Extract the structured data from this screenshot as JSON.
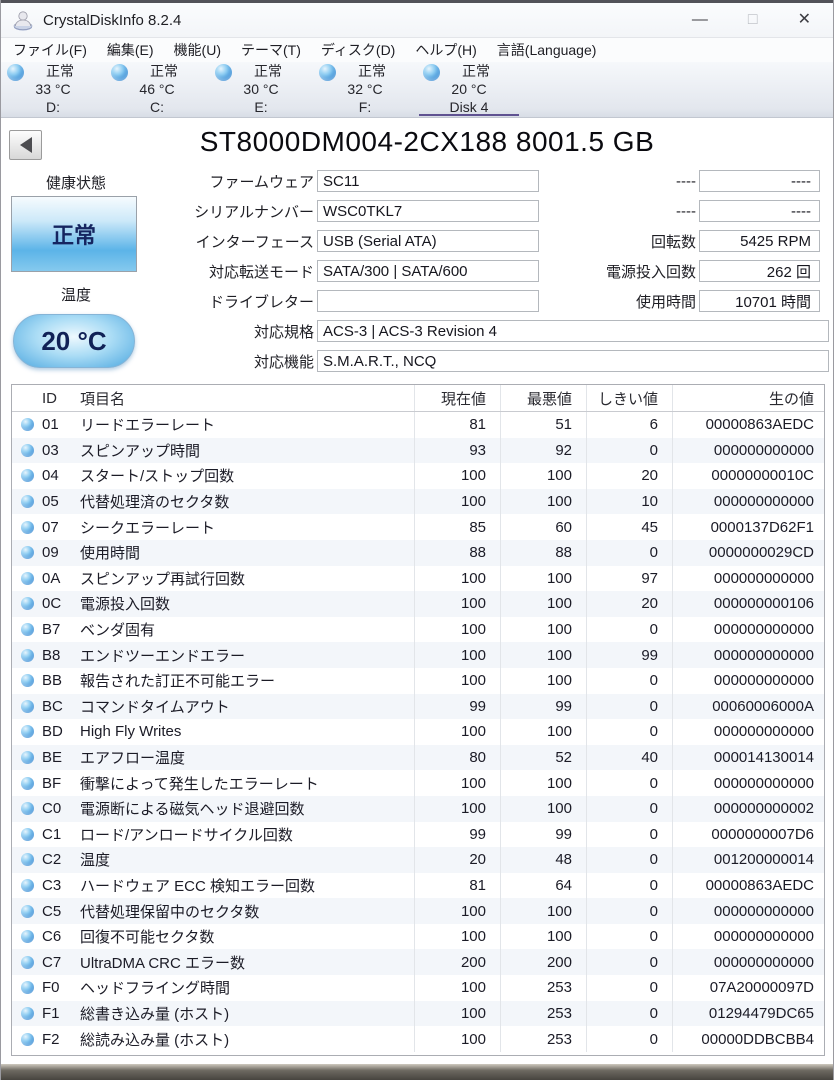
{
  "window": {
    "title": "CrystalDiskInfo 8.2.4",
    "minimize_glyph": "—",
    "maximize_glyph": "□",
    "close_glyph": "✕"
  },
  "menu": [
    "ファイル(F)",
    "編集(E)",
    "機能(U)",
    "テーマ(T)",
    "ディスク(D)",
    "ヘルプ(H)",
    "言語(Language)"
  ],
  "tabs": [
    {
      "status": "正常",
      "temp": "33 °C",
      "name": "D:",
      "selected": false
    },
    {
      "status": "正常",
      "temp": "46 °C",
      "name": "C:",
      "selected": false
    },
    {
      "status": "正常",
      "temp": "30 °C",
      "name": "E:",
      "selected": false
    },
    {
      "status": "正常",
      "temp": "32 °C",
      "name": "F:",
      "selected": false
    },
    {
      "status": "正常",
      "temp": "20 °C",
      "name": "Disk 4",
      "selected": true
    }
  ],
  "drive": {
    "title": "ST8000DM004-2CX188 8001.5 GB",
    "health_label": "健康状態",
    "health_status": "正常",
    "temp_label": "温度",
    "temp_value": "20 °C",
    "fields_left": [
      {
        "label": "ファームウェア",
        "value": "SC11"
      },
      {
        "label": "シリアルナンバー",
        "value": "WSC0TKL7"
      },
      {
        "label": "インターフェース",
        "value": "USB (Serial ATA)"
      },
      {
        "label": "対応転送モード",
        "value": "SATA/300 | SATA/600"
      },
      {
        "label": "ドライブレター",
        "value": ""
      }
    ],
    "fields_right": [
      {
        "label": "----",
        "value": "----"
      },
      {
        "label": "----",
        "value": "----"
      },
      {
        "label": "回転数",
        "value": "5425 RPM"
      },
      {
        "label": "電源投入回数",
        "value": "262 回"
      },
      {
        "label": "使用時間",
        "value": "10701 時間"
      }
    ],
    "fields_wide": [
      {
        "label": "対応規格",
        "value": "ACS-3 | ACS-3 Revision 4"
      },
      {
        "label": "対応機能",
        "value": "S.M.A.R.T., NCQ"
      }
    ]
  },
  "smart_table": {
    "headers": [
      "ID",
      "項目名",
      "現在値",
      "最悪値",
      "しきい値",
      "生の値"
    ],
    "rows": [
      [
        "01",
        "リードエラーレート",
        "81",
        "51",
        "6",
        "00000863AEDC"
      ],
      [
        "03",
        "スピンアップ時間",
        "93",
        "92",
        "0",
        "000000000000"
      ],
      [
        "04",
        "スタート/ストップ回数",
        "100",
        "100",
        "20",
        "00000000010C"
      ],
      [
        "05",
        "代替処理済のセクタ数",
        "100",
        "100",
        "10",
        "000000000000"
      ],
      [
        "07",
        "シークエラーレート",
        "85",
        "60",
        "45",
        "0000137D62F1"
      ],
      [
        "09",
        "使用時間",
        "88",
        "88",
        "0",
        "0000000029CD"
      ],
      [
        "0A",
        "スピンアップ再試行回数",
        "100",
        "100",
        "97",
        "000000000000"
      ],
      [
        "0C",
        "電源投入回数",
        "100",
        "100",
        "20",
        "000000000106"
      ],
      [
        "B7",
        "ベンダ固有",
        "100",
        "100",
        "0",
        "000000000000"
      ],
      [
        "B8",
        "エンドツーエンドエラー",
        "100",
        "100",
        "99",
        "000000000000"
      ],
      [
        "BB",
        "報告された訂正不可能エラー",
        "100",
        "100",
        "0",
        "000000000000"
      ],
      [
        "BC",
        "コマンドタイムアウト",
        "99",
        "99",
        "0",
        "00060006000A"
      ],
      [
        "BD",
        "High Fly Writes",
        "100",
        "100",
        "0",
        "000000000000"
      ],
      [
        "BE",
        "エアフロー温度",
        "80",
        "52",
        "40",
        "000014130014"
      ],
      [
        "BF",
        "衝撃によって発生したエラーレート",
        "100",
        "100",
        "0",
        "000000000000"
      ],
      [
        "C0",
        "電源断による磁気ヘッド退避回数",
        "100",
        "100",
        "0",
        "000000000002"
      ],
      [
        "C1",
        "ロード/アンロードサイクル回数",
        "99",
        "99",
        "0",
        "0000000007D6"
      ],
      [
        "C2",
        "温度",
        "20",
        "48",
        "0",
        "001200000014"
      ],
      [
        "C3",
        "ハードウェア ECC 検知エラー回数",
        "81",
        "64",
        "0",
        "00000863AEDC"
      ],
      [
        "C5",
        "代替処理保留中のセクタ数",
        "100",
        "100",
        "0",
        "000000000000"
      ],
      [
        "C6",
        "回復不可能セクタ数",
        "100",
        "100",
        "0",
        "000000000000"
      ],
      [
        "C7",
        "UltraDMA CRC エラー数",
        "200",
        "200",
        "0",
        "000000000000"
      ],
      [
        "F0",
        "ヘッドフライング時間",
        "100",
        "253",
        "0",
        "07A20000097D"
      ],
      [
        "F1",
        "総書き込み量 (ホスト)",
        "100",
        "253",
        "0",
        "01294479DC65"
      ],
      [
        "F2",
        "総読み込み量 (ホスト)",
        "100",
        "253",
        "0",
        "00000DDBCBB4"
      ]
    ]
  },
  "colors": {
    "accent_tab_underline": "#5f5291",
    "orb_blue": "#2e86d2",
    "health_button_blue": "#5cb4e8",
    "health_text_navy": "#152560",
    "row_alt": "#f3f6fa"
  }
}
